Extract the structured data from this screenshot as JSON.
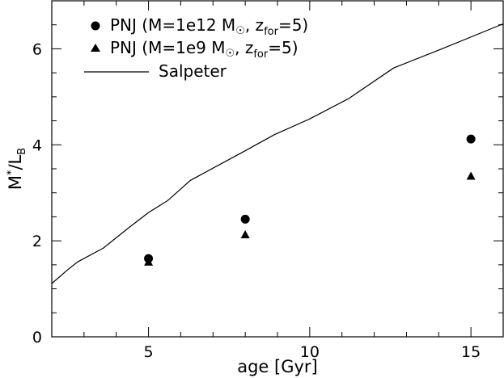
{
  "chart_data": {
    "type": "scatter",
    "xlabel": "age [Gyr]",
    "ylabel": {
      "main": "M",
      "sup": "*",
      "slash": "/L",
      "sub": "B"
    },
    "xlim": [
      2,
      16
    ],
    "ylim": [
      0,
      7
    ],
    "x_ticks": [
      5,
      10,
      15
    ],
    "y_ticks": [
      0,
      2,
      4,
      6
    ],
    "grid": false,
    "legend_position": "top-left",
    "series": [
      {
        "name": "PNJ (M=1e12 M☉, z_for=5)",
        "legend": {
          "pre": "PNJ (M=1e12 M",
          "sym": "☉",
          "mid": ", z",
          "sub": "for",
          "post": "=5)"
        },
        "marker": "circle",
        "x": [
          5,
          8,
          15
        ],
        "y": [
          1.63,
          2.45,
          4.12
        ]
      },
      {
        "name": "PNJ (M=1e9 M☉, z_for=5)",
        "legend": {
          "pre": "PNJ (M=1e9 M",
          "sym": "☉",
          "mid": ", z",
          "sub": "for",
          "post": "=5)"
        },
        "marker": "triangle",
        "x": [
          5,
          8,
          15
        ],
        "y": [
          1.55,
          2.12,
          3.34
        ]
      },
      {
        "name": "Salpeter",
        "legend": {
          "text": "Salpeter"
        },
        "marker": "line",
        "x": [
          2,
          2.5,
          2.8,
          3.6,
          4.4,
          5,
          5.6,
          6.3,
          7.9,
          8.9,
          10,
          11.2,
          12.6,
          14.1,
          16
        ],
        "y": [
          1.11,
          1.4,
          1.56,
          1.85,
          2.28,
          2.59,
          2.84,
          3.26,
          3.84,
          4.21,
          4.54,
          4.96,
          5.6,
          6.0,
          6.52
        ]
      }
    ]
  }
}
